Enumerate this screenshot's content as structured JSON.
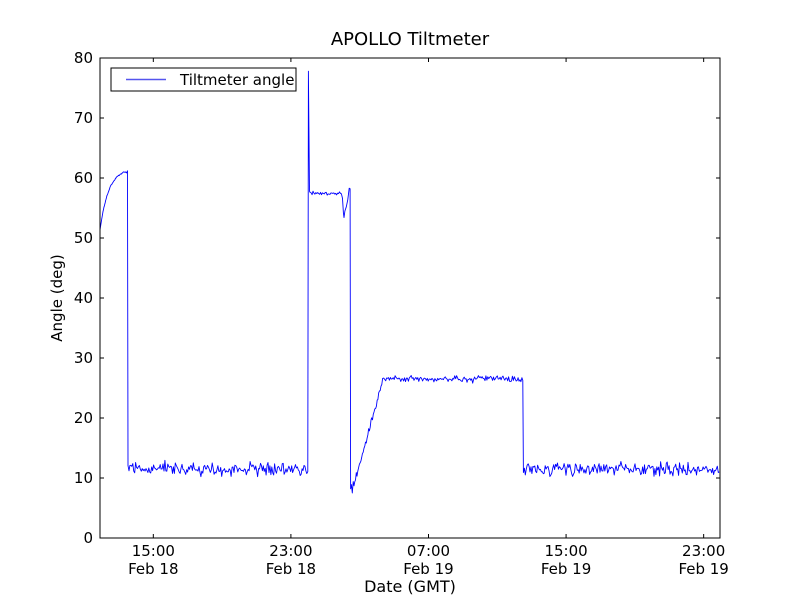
{
  "figure": {
    "title": "APOLLO Tiltmeter"
  },
  "legend": {
    "items": [
      {
        "label": "Tiltmeter angle",
        "color": "#0000ff"
      }
    ]
  },
  "chart_data": {
    "type": "line",
    "title": "APOLLO Tiltmeter",
    "xlabel": "Date (GMT)",
    "ylabel": "Angle (deg)",
    "ylim": [
      0,
      80
    ],
    "y_ticks": [
      0,
      10,
      20,
      30,
      40,
      50,
      60,
      70,
      80
    ],
    "x_range_hours_from_feb18_midnight": [
      11.9,
      47.95
    ],
    "x_ticks": [
      {
        "hour": 15,
        "time": "15:00",
        "date": "Feb 18"
      },
      {
        "hour": 23,
        "time": "23:00",
        "date": "Feb 18"
      },
      {
        "hour": 31,
        "time": "07:00",
        "date": "Feb 19"
      },
      {
        "hour": 39,
        "time": "15:00",
        "date": "Feb 19"
      },
      {
        "hour": 47,
        "time": "23:00",
        "date": "Feb 19"
      }
    ],
    "grid": false,
    "legend_position": "upper left",
    "line_color": "#0000ff",
    "background_color": "#ffffff",
    "series": [
      {
        "name": "Tiltmeter angle",
        "noise_seed": 20,
        "segments": [
          {
            "type": "curve",
            "t0": 11.9,
            "t1": 13.32,
            "v0": 51.3,
            "v1": 61.6,
            "tau": 0.5,
            "noise": 0.1
          },
          {
            "type": "points",
            "pts": [
              [
                13.38,
                61.0
              ],
              [
                13.44,
                60.85
              ],
              [
                13.5,
                61.2
              ]
            ]
          },
          {
            "type": "flat",
            "t0": 13.53,
            "t1": 23.99,
            "level": 11.5,
            "noise": 1.1
          },
          {
            "type": "points",
            "pts": [
              [
                24.02,
                77.8
              ],
              [
                24.08,
                57.8
              ]
            ]
          },
          {
            "type": "flat",
            "t0": 24.12,
            "t1": 25.95,
            "level": 57.45,
            "noise": 0.28
          },
          {
            "type": "points",
            "pts": [
              [
                26.0,
                56.6
              ],
              [
                26.05,
                54.2
              ],
              [
                26.09,
                53.4
              ],
              [
                26.14,
                54.5
              ],
              [
                26.22,
                55.2
              ],
              [
                26.31,
                56.4
              ],
              [
                26.39,
                58.3
              ],
              [
                26.44,
                58.2
              ]
            ]
          },
          {
            "type": "points",
            "pts": [
              [
                26.47,
                8.2
              ],
              [
                26.52,
                8.9
              ],
              [
                26.57,
                7.5
              ],
              [
                26.62,
                9.4
              ],
              [
                26.67,
                8.7
              ]
            ]
          },
          {
            "type": "ramp",
            "t0": 26.71,
            "t1": 28.35,
            "v0": 9.2,
            "v1": 26.5,
            "noise": 0.55
          },
          {
            "type": "flat",
            "t0": 28.4,
            "t1": 36.49,
            "level": 26.55,
            "noise": 0.5
          },
          {
            "type": "flat",
            "t0": 36.52,
            "t1": 47.95,
            "level": 11.5,
            "noise": 1.05
          }
        ]
      }
    ]
  }
}
